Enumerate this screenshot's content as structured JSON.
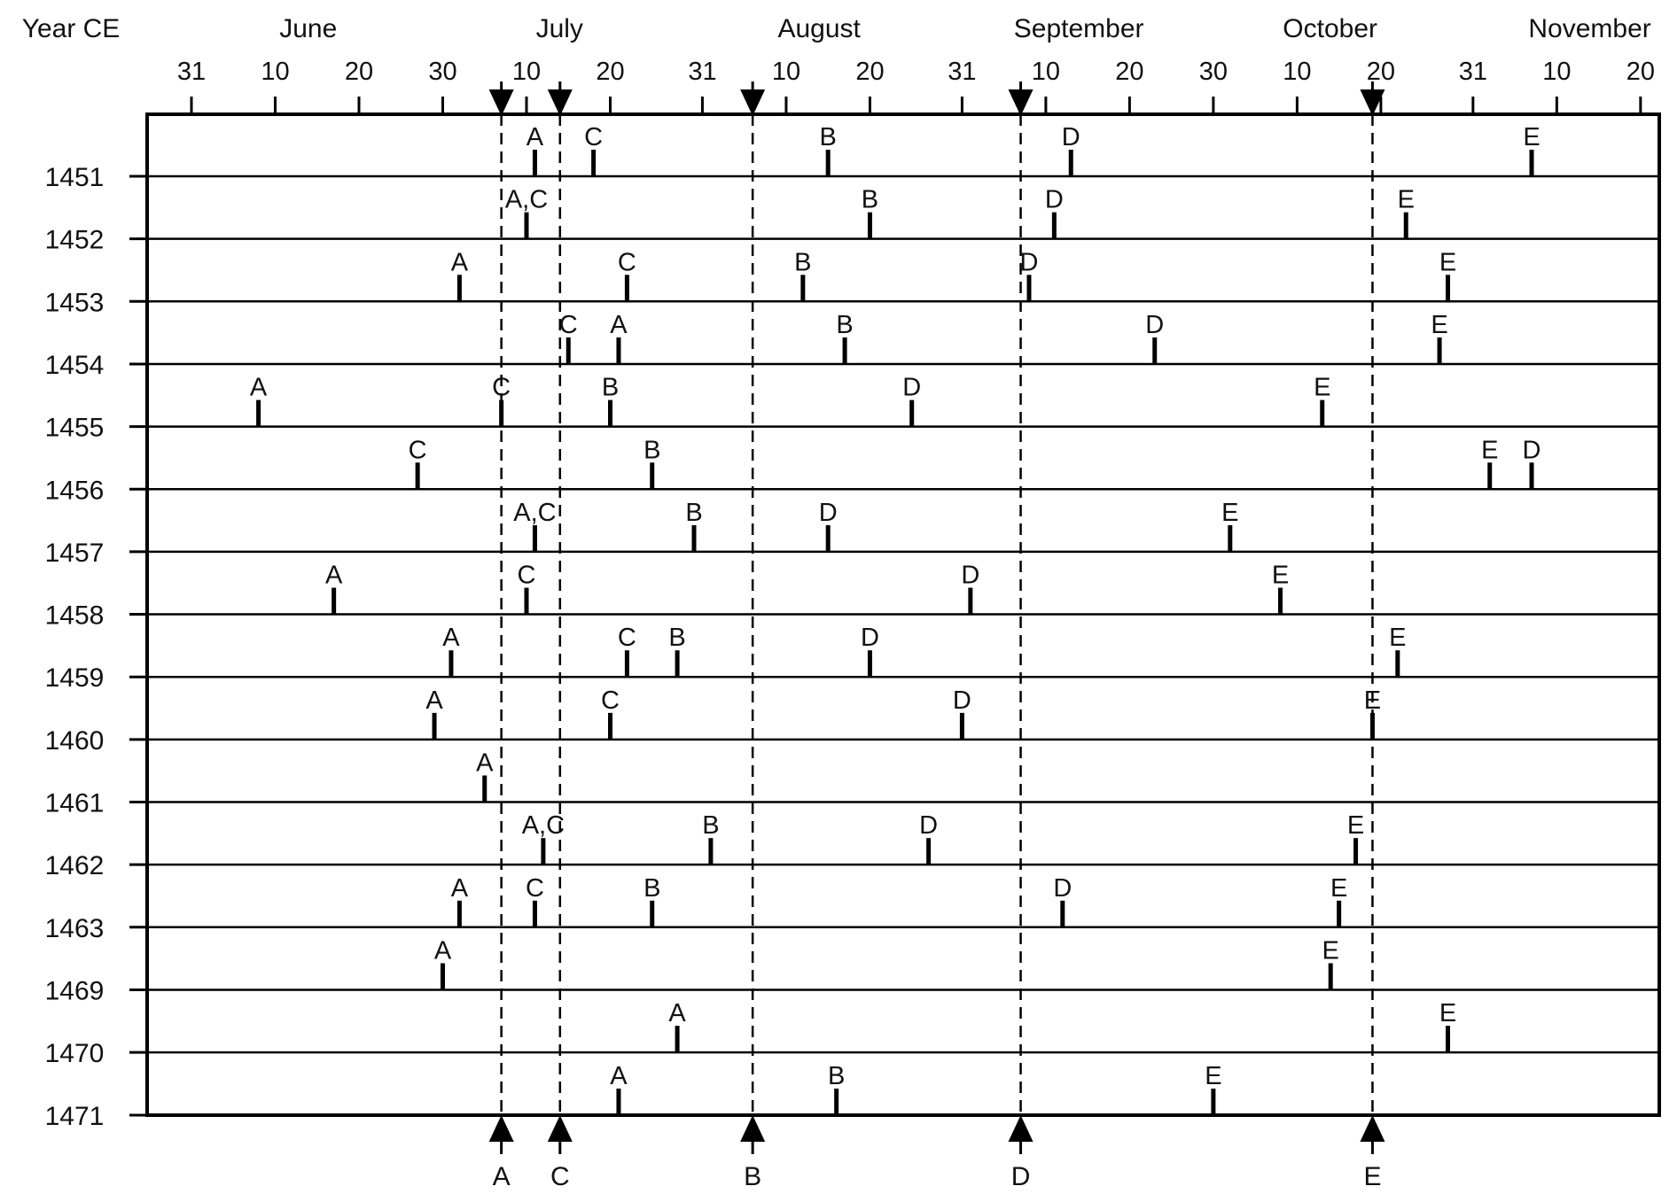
{
  "chart_data": {
    "type": "scatter",
    "title": "",
    "year_axis_label": "Year CE",
    "months": [
      "June",
      "July",
      "August",
      "September",
      "October",
      "November"
    ],
    "day_ticks": [
      {
        "date": "05-31",
        "label": "31"
      },
      {
        "date": "06-10",
        "label": "10"
      },
      {
        "date": "06-20",
        "label": "20"
      },
      {
        "date": "06-30",
        "label": "30"
      },
      {
        "date": "07-10",
        "label": "10"
      },
      {
        "date": "07-20",
        "label": "20"
      },
      {
        "date": "07-31",
        "label": "31"
      },
      {
        "date": "08-10",
        "label": "10"
      },
      {
        "date": "08-20",
        "label": "20"
      },
      {
        "date": "08-31",
        "label": "31"
      },
      {
        "date": "09-10",
        "label": "10"
      },
      {
        "date": "09-20",
        "label": "20"
      },
      {
        "date": "09-30",
        "label": "30"
      },
      {
        "date": "10-10",
        "label": "10"
      },
      {
        "date": "10-20",
        "label": "20"
      },
      {
        "date": "10-31",
        "label": "31"
      },
      {
        "date": "11-10",
        "label": "10"
      },
      {
        "date": "11-20",
        "label": "20"
      }
    ],
    "x_range": [
      "05-27",
      "11-26"
    ],
    "reference_dates": [
      {
        "label": "A",
        "date": "07-07"
      },
      {
        "label": "C",
        "date": "07-14"
      },
      {
        "label": "B",
        "date": "08-06"
      },
      {
        "label": "D",
        "date": "09-07"
      },
      {
        "label": "E",
        "date": "10-19"
      }
    ],
    "years": [
      "1451",
      "1452",
      "1453",
      "1454",
      "1455",
      "1456",
      "1457",
      "1458",
      "1459",
      "1460",
      "1461",
      "1462",
      "1463",
      "1469",
      "1470",
      "1471"
    ],
    "events": [
      {
        "year": "1451",
        "marks": [
          {
            "label": "A",
            "date": "07-11"
          },
          {
            "label": "C",
            "date": "07-18"
          },
          {
            "label": "B",
            "date": "08-15"
          },
          {
            "label": "D",
            "date": "09-13"
          },
          {
            "label": "E",
            "date": "11-07"
          }
        ]
      },
      {
        "year": "1452",
        "marks": [
          {
            "label": "A,C",
            "date": "07-10"
          },
          {
            "label": "B",
            "date": "08-20"
          },
          {
            "label": "D",
            "date": "09-11"
          },
          {
            "label": "E",
            "date": "10-23"
          }
        ]
      },
      {
        "year": "1453",
        "marks": [
          {
            "label": "A",
            "date": "07-02"
          },
          {
            "label": "C",
            "date": "07-22"
          },
          {
            "label": "B",
            "date": "08-12"
          },
          {
            "label": "D",
            "date": "09-08"
          },
          {
            "label": "E",
            "date": "10-28"
          }
        ]
      },
      {
        "year": "1454",
        "marks": [
          {
            "label": "C",
            "date": "07-15"
          },
          {
            "label": "A",
            "date": "07-21"
          },
          {
            "label": "B",
            "date": "08-17"
          },
          {
            "label": "D",
            "date": "09-23"
          },
          {
            "label": "E",
            "date": "10-27"
          }
        ]
      },
      {
        "year": "1455",
        "marks": [
          {
            "label": "A",
            "date": "06-08"
          },
          {
            "label": "C",
            "date": "07-07"
          },
          {
            "label": "B",
            "date": "07-20"
          },
          {
            "label": "D",
            "date": "08-25"
          },
          {
            "label": "E",
            "date": "10-13"
          }
        ]
      },
      {
        "year": "1456",
        "marks": [
          {
            "label": "C",
            "date": "06-27"
          },
          {
            "label": "B",
            "date": "07-25"
          },
          {
            "label": "E",
            "date": "11-02"
          },
          {
            "label": "D",
            "date": "11-07"
          }
        ]
      },
      {
        "year": "1457",
        "marks": [
          {
            "label": "A,C",
            "date": "07-11"
          },
          {
            "label": "B",
            "date": "07-30"
          },
          {
            "label": "D",
            "date": "08-15"
          },
          {
            "label": "E",
            "date": "10-02"
          }
        ]
      },
      {
        "year": "1458",
        "marks": [
          {
            "label": "A",
            "date": "06-17"
          },
          {
            "label": "C",
            "date": "07-10"
          },
          {
            "label": "D",
            "date": "09-01"
          },
          {
            "label": "E",
            "date": "10-08"
          }
        ]
      },
      {
        "year": "1459",
        "marks": [
          {
            "label": "A",
            "date": "07-01"
          },
          {
            "label": "C",
            "date": "07-22"
          },
          {
            "label": "B",
            "date": "07-28"
          },
          {
            "label": "D",
            "date": "08-20"
          },
          {
            "label": "E",
            "date": "10-22"
          }
        ]
      },
      {
        "year": "1460",
        "marks": [
          {
            "label": "A",
            "date": "06-29"
          },
          {
            "label": "C",
            "date": "07-20"
          },
          {
            "label": "D",
            "date": "08-31"
          },
          {
            "label": "E",
            "date": "10-19"
          }
        ]
      },
      {
        "year": "1461",
        "marks": [
          {
            "label": "A",
            "date": "07-05"
          }
        ]
      },
      {
        "year": "1462",
        "marks": [
          {
            "label": "A,C",
            "date": "07-12"
          },
          {
            "label": "B",
            "date": "08-01"
          },
          {
            "label": "D",
            "date": "08-27"
          },
          {
            "label": "E",
            "date": "10-17"
          }
        ]
      },
      {
        "year": "1463",
        "marks": [
          {
            "label": "A",
            "date": "07-02"
          },
          {
            "label": "C",
            "date": "07-11"
          },
          {
            "label": "B",
            "date": "07-25"
          },
          {
            "label": "D",
            "date": "09-12"
          },
          {
            "label": "E",
            "date": "10-15"
          }
        ]
      },
      {
        "year": "1469",
        "marks": [
          {
            "label": "A",
            "date": "06-30"
          },
          {
            "label": "E",
            "date": "10-14"
          }
        ]
      },
      {
        "year": "1470",
        "marks": [
          {
            "label": "A",
            "date": "07-28"
          },
          {
            "label": "E",
            "date": "10-28"
          }
        ]
      },
      {
        "year": "1471",
        "marks": [
          {
            "label": "A",
            "date": "07-21"
          },
          {
            "label": "B",
            "date": "08-16"
          },
          {
            "label": "E",
            "date": "09-30"
          }
        ]
      }
    ]
  }
}
